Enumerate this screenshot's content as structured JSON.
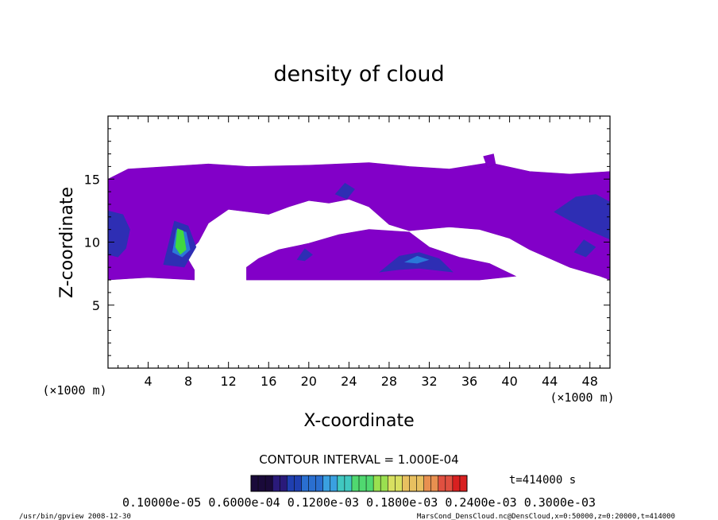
{
  "chart_data": {
    "type": "heatmap",
    "title": "density of cloud",
    "xlabel": "X-coordinate",
    "ylabel": "Z-coordinate",
    "x_unit_left": "(×1000 m)",
    "x_unit_right": "(×1000 m)",
    "xlim": [
      0,
      50
    ],
    "ylim": [
      0,
      20
    ],
    "x_ticks": [
      "4",
      "8",
      "12",
      "16",
      "20",
      "24",
      "28",
      "32",
      "36",
      "40",
      "44",
      "48"
    ],
    "y_ticks": [
      "5",
      "10",
      "15"
    ],
    "contour_interval": "CONTOUR INTERVAL = 1.000E-04",
    "time_label": "t=414000 s",
    "colorbar_label": "0.10000e-05 0.6000e-04 0.1200e-03 0.1800e-03 0.2400e-03 0.3000e-03",
    "colorbar_colors": [
      "#1a0a3a",
      "#2a1a7a",
      "#1f3fb0",
      "#2a6fd0",
      "#3aa0e0",
      "#40c8c0",
      "#50d870",
      "#9ae050",
      "#d8e060",
      "#e8c060",
      "#e89050",
      "#e05040",
      "#d82020"
    ],
    "regions": [
      {
        "kind": "cloud",
        "color": "#8200c8",
        "polygon": [
          [
            0,
            7
          ],
          [
            0,
            15
          ],
          [
            2,
            15.8
          ],
          [
            6,
            16
          ],
          [
            10,
            16.2
          ],
          [
            14,
            16
          ],
          [
            20,
            16.1
          ],
          [
            26,
            16.3
          ],
          [
            30,
            16
          ],
          [
            34,
            15.8
          ],
          [
            38,
            16.3
          ],
          [
            42,
            15.6
          ],
          [
            46,
            15.4
          ],
          [
            50,
            15.6
          ],
          [
            50,
            7
          ],
          [
            49,
            7.3
          ],
          [
            46,
            8
          ],
          [
            44,
            8.7
          ],
          [
            42,
            9.4
          ],
          [
            40,
            10.3
          ],
          [
            37,
            11
          ],
          [
            34,
            11.2
          ],
          [
            30,
            10.9
          ],
          [
            28,
            11.4
          ],
          [
            26,
            12.8
          ],
          [
            24,
            13.4
          ],
          [
            22,
            13.1
          ],
          [
            20,
            13.3
          ],
          [
            18,
            12.8
          ],
          [
            16,
            12.2
          ],
          [
            14,
            12.4
          ],
          [
            12,
            12.6
          ],
          [
            10,
            11.5
          ],
          [
            9,
            10
          ],
          [
            8.5,
            9.6
          ],
          [
            8,
            8.6
          ],
          [
            8.6,
            7.8
          ],
          [
            8.6,
            7
          ],
          [
            4,
            7.2
          ],
          [
            2,
            7.1
          ]
        ]
      },
      {
        "kind": "cloud",
        "color": "#8200c8",
        "polygon": [
          [
            13.8,
            7
          ],
          [
            13.8,
            8
          ],
          [
            15,
            8.7
          ],
          [
            17,
            9.4
          ],
          [
            20,
            9.9
          ],
          [
            23,
            10.6
          ],
          [
            26,
            11
          ],
          [
            30,
            10.8
          ],
          [
            32,
            9.6
          ],
          [
            35,
            8.8
          ],
          [
            38,
            8.3
          ],
          [
            40.6,
            7.3
          ],
          [
            37,
            7
          ],
          [
            30,
            7
          ]
        ]
      },
      {
        "kind": "cloud",
        "color": "#8200c8",
        "polygon": [
          [
            37.4,
            16.8
          ],
          [
            38.4,
            17
          ],
          [
            38.6,
            16.2
          ],
          [
            37.8,
            15.9
          ]
        ]
      },
      {
        "kind": "feature",
        "color": "#2e2eb4",
        "polygon": [
          [
            5.5,
            8.2
          ],
          [
            6.6,
            11.7
          ],
          [
            8,
            11.3
          ],
          [
            8.8,
            9.6
          ],
          [
            7.6,
            8
          ]
        ]
      },
      {
        "kind": "feature",
        "color": "#2a78d8",
        "polygon": [
          [
            6.4,
            9.2
          ],
          [
            6.8,
            11
          ],
          [
            7.8,
            10.8
          ],
          [
            8.2,
            9.4
          ],
          [
            7.4,
            8.8
          ]
        ]
      },
      {
        "kind": "feature",
        "color": "#40d840",
        "polygon": [
          [
            6.7,
            9.6
          ],
          [
            6.9,
            11.1
          ],
          [
            7.5,
            10.9
          ],
          [
            7.8,
            9.4
          ],
          [
            7.2,
            9
          ]
        ]
      },
      {
        "kind": "feature",
        "color": "#2e2eb4",
        "polygon": [
          [
            0,
            9
          ],
          [
            0,
            12.5
          ],
          [
            1.5,
            12.2
          ],
          [
            2.2,
            11
          ],
          [
            1.8,
            9.5
          ],
          [
            1,
            8.8
          ]
        ]
      },
      {
        "kind": "feature",
        "color": "#2e2eb4",
        "polygon": [
          [
            27,
            7.6
          ],
          [
            29,
            8.9
          ],
          [
            31,
            9.2
          ],
          [
            33,
            8.7
          ],
          [
            34.4,
            7.6
          ],
          [
            31,
            7.9
          ],
          [
            29,
            7.8
          ]
        ]
      },
      {
        "kind": "feature",
        "color": "#2a78d8",
        "polygon": [
          [
            29.5,
            8.4
          ],
          [
            30.8,
            8.9
          ],
          [
            32,
            8.6
          ],
          [
            30.8,
            8.3
          ]
        ]
      },
      {
        "kind": "feature",
        "color": "#2e2eb4",
        "polygon": [
          [
            22.6,
            13.8
          ],
          [
            23.6,
            14.7
          ],
          [
            24.6,
            14.2
          ],
          [
            23.8,
            13.4
          ]
        ]
      },
      {
        "kind": "feature",
        "color": "#2e2eb4",
        "polygon": [
          [
            18.8,
            8.6
          ],
          [
            19.6,
            9.5
          ],
          [
            20.4,
            9
          ],
          [
            19.6,
            8.5
          ]
        ]
      },
      {
        "kind": "feature",
        "color": "#2e2eb4",
        "polygon": [
          [
            44.4,
            12.4
          ],
          [
            46.6,
            13.6
          ],
          [
            48.6,
            13.8
          ],
          [
            50,
            13.2
          ],
          [
            50,
            10.2
          ],
          [
            48,
            10.9
          ],
          [
            46,
            11.7
          ]
        ]
      },
      {
        "kind": "feature",
        "color": "#2e2eb4",
        "polygon": [
          [
            46.4,
            9.2
          ],
          [
            47.4,
            10.2
          ],
          [
            48.6,
            9.6
          ],
          [
            47.6,
            8.8
          ]
        ]
      }
    ]
  },
  "footer": {
    "left": "/usr/bin/gpview  2008-12-30",
    "right": "MarsCond_DensCloud.nc@DensCloud,x=0:50000,z=0:20000,t=414000"
  }
}
